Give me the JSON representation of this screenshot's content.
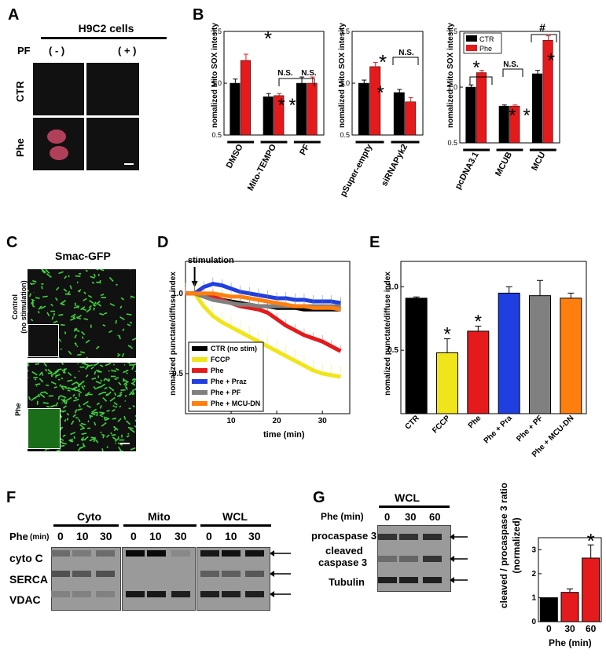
{
  "A": {
    "letter": "A",
    "title": "H9C2 cells",
    "pf_label": "PF",
    "col_minus": "( - )",
    "col_plus": "( + )",
    "row_ctr": "CTR",
    "row_phe": "Phe"
  },
  "B": {
    "letter": "B",
    "ylabel": "nomalized Mito SOX intesity",
    "colors": {
      "ctr": "#000000",
      "phe": "#e41a1c"
    },
    "legend": [
      "CTR",
      "Phe"
    ],
    "ns": "N.S.",
    "hash": "#",
    "star": "*"
  },
  "C": {
    "letter": "C",
    "title": "Smac-GFP",
    "control_label": "Control",
    "control_sub": "(no stimulation)",
    "phe_label": "Phe"
  },
  "D": {
    "letter": "D",
    "ylabel": "nomalized punctate/diffuse index",
    "xlabel": "time (min)",
    "annotation": "stimulation",
    "legend": [
      "CTR (no stim)",
      "FCCP",
      "Phe",
      "Phe + Praz",
      "Phe + PF",
      "Phe + MCU-DN"
    ]
  },
  "E": {
    "letter": "E",
    "ylabel": "nomalized punctate/diffuse index",
    "star": "*"
  },
  "F": {
    "letter": "F",
    "groups": [
      "Cyto",
      "Mito",
      "WCL"
    ],
    "phe_label": "Phe",
    "phe_unit": "(min)",
    "times": [
      "0",
      "10",
      "30",
      "0",
      "10",
      "30",
      "0",
      "10",
      "30"
    ],
    "rows": [
      "cyto C",
      "SERCA",
      "VDAC"
    ]
  },
  "G": {
    "letter": "G",
    "group": "WCL",
    "phe_label": "Phe (min)",
    "times": [
      "0",
      "30",
      "60"
    ],
    "rows": [
      "procaspase 3",
      "cleaved",
      "caspase 3",
      "Tubulin"
    ],
    "ylabel_1": "cleaved / procaspase 3 ratio",
    "ylabel_2": "(normalized)",
    "xlabel": "Phe (min)",
    "star": "*"
  },
  "chart_data": [
    {
      "type": "bar",
      "panel": "B-left",
      "categories": [
        "DMSO",
        "Mito-TEMPO",
        "PF"
      ],
      "series": [
        {
          "name": "CTR",
          "values": [
            1.0,
            0.87,
            1.0
          ],
          "errors": [
            0.04,
            0.03,
            0.06
          ]
        },
        {
          "name": "Phe",
          "values": [
            1.22,
            0.88,
            1.0
          ],
          "errors": [
            0.06,
            0.02,
            0.06
          ]
        }
      ],
      "ylabel": "nomalized Mito SOX intesity",
      "ylim": [
        0.5,
        1.5
      ],
      "yticks": [
        "0.5",
        "1.0",
        "1.5"
      ]
    },
    {
      "type": "bar",
      "panel": "B-middle",
      "categories": [
        "pSuper-empty",
        "siRNAPyk2"
      ],
      "series": [
        {
          "name": "CTR",
          "values": [
            1.0,
            0.91
          ],
          "errors": [
            0.03,
            0.03
          ]
        },
        {
          "name": "Phe",
          "values": [
            1.16,
            0.82
          ],
          "errors": [
            0.04,
            0.04
          ]
        }
      ],
      "ylabel": "nomalized Mito SOX intesity",
      "ylim": [
        0.5,
        1.5
      ],
      "yticks": [
        "0.5",
        "1.0",
        "1.5"
      ]
    },
    {
      "type": "bar",
      "panel": "B-right",
      "categories": [
        "pcDNA3.1",
        "MCUB",
        "MCU"
      ],
      "series": [
        {
          "name": "CTR",
          "values": [
            1.0,
            0.83,
            1.12
          ],
          "errors": [
            0.02,
            0.01,
            0.03
          ]
        },
        {
          "name": "Phe",
          "values": [
            1.13,
            0.83,
            1.42
          ],
          "errors": [
            0.02,
            0.01,
            0.04
          ]
        }
      ],
      "ylabel": "nomalized Mito SOX intesity",
      "ylim": [
        0.5,
        1.5
      ],
      "yticks": [
        "0.5",
        "1.0",
        "1.5"
      ],
      "legend": [
        "CTR",
        "Phe"
      ]
    },
    {
      "type": "line",
      "panel": "D",
      "xlabel": "time (min)",
      "ylabel": "nomalized punctate/diffuse index",
      "xlim": [
        0,
        36
      ],
      "ylim": [
        0.25,
        1.2
      ],
      "xticks": [
        "10",
        "20",
        "30"
      ],
      "yticks": [
        "0.5",
        "1.0"
      ],
      "x": [
        0,
        2,
        4,
        6,
        8,
        10,
        12,
        14,
        16,
        18,
        20,
        22,
        24,
        26,
        28,
        30,
        32,
        34
      ],
      "series": [
        {
          "name": "CTR (no stim)",
          "color": "#000000",
          "values": [
            1.0,
            1.0,
            0.99,
            0.98,
            0.96,
            0.95,
            0.94,
            0.93,
            0.92,
            0.92,
            0.91,
            0.91,
            0.91,
            0.9,
            0.9,
            0.9,
            0.9,
            0.9
          ]
        },
        {
          "name": "FCCP",
          "color": "#f0e51a",
          "values": [
            1.0,
            1.0,
            0.92,
            0.86,
            0.82,
            0.79,
            0.76,
            0.73,
            0.7,
            0.67,
            0.64,
            0.61,
            0.58,
            0.55,
            0.52,
            0.5,
            0.49,
            0.48
          ]
        },
        {
          "name": "Phe",
          "color": "#e41a1c",
          "values": [
            1.0,
            1.0,
            0.99,
            0.98,
            0.96,
            0.94,
            0.92,
            0.91,
            0.9,
            0.88,
            0.84,
            0.8,
            0.77,
            0.74,
            0.72,
            0.7,
            0.67,
            0.64
          ]
        },
        {
          "name": "Phe + Praz",
          "color": "#1f3fe0",
          "values": [
            1.0,
            1.0,
            1.04,
            1.06,
            1.05,
            1.03,
            1.01,
            1.0,
            0.99,
            0.98,
            0.97,
            0.97,
            0.96,
            0.96,
            0.95,
            0.95,
            0.95,
            0.94
          ]
        },
        {
          "name": "Phe + PF",
          "color": "#808080",
          "values": [
            1.0,
            1.0,
            0.98,
            0.96,
            0.95,
            0.94,
            0.93,
            0.93,
            0.92,
            0.92,
            0.92,
            0.92,
            0.92,
            0.92,
            0.92,
            0.92,
            0.92,
            0.92
          ]
        },
        {
          "name": "Phe + MCU-DN",
          "color": "#ff7f0e",
          "values": [
            1.0,
            1.0,
            1.0,
            1.0,
            0.99,
            0.98,
            0.98,
            0.97,
            0.96,
            0.95,
            0.94,
            0.93,
            0.92,
            0.92,
            0.91,
            0.91,
            0.91,
            0.9
          ]
        }
      ]
    },
    {
      "type": "bar",
      "panel": "E",
      "categories": [
        "CTR",
        "FCCP",
        "Phe",
        "Phe + Pra",
        "Phe + PF",
        "Phe + MCU-DN"
      ],
      "values": [
        0.91,
        0.48,
        0.65,
        0.95,
        0.93,
        0.91
      ],
      "errors": [
        0.01,
        0.11,
        0.04,
        0.05,
        0.12,
        0.04
      ],
      "colors": [
        "#000000",
        "#f0e51a",
        "#e41a1c",
        "#1f3fe0",
        "#808080",
        "#ff7f0e"
      ],
      "ylabel": "nomalized punctate/diffuse index",
      "ylim": [
        0,
        1.2
      ],
      "yticks": [
        "0.5",
        "1.0"
      ]
    },
    {
      "type": "bar",
      "panel": "G",
      "categories": [
        "0",
        "30",
        "60"
      ],
      "values": [
        1.0,
        1.22,
        2.65
      ],
      "errors": [
        0.0,
        0.15,
        0.55
      ],
      "colors": [
        "#000000",
        "#e41a1c",
        "#e41a1c"
      ],
      "xlabel": "Phe (min)",
      "ylabel": "cleaved / procaspase 3 ratio (normalized)",
      "ylim": [
        0,
        3.5
      ],
      "yticks": [
        "0",
        "1",
        "2",
        "3"
      ]
    }
  ]
}
